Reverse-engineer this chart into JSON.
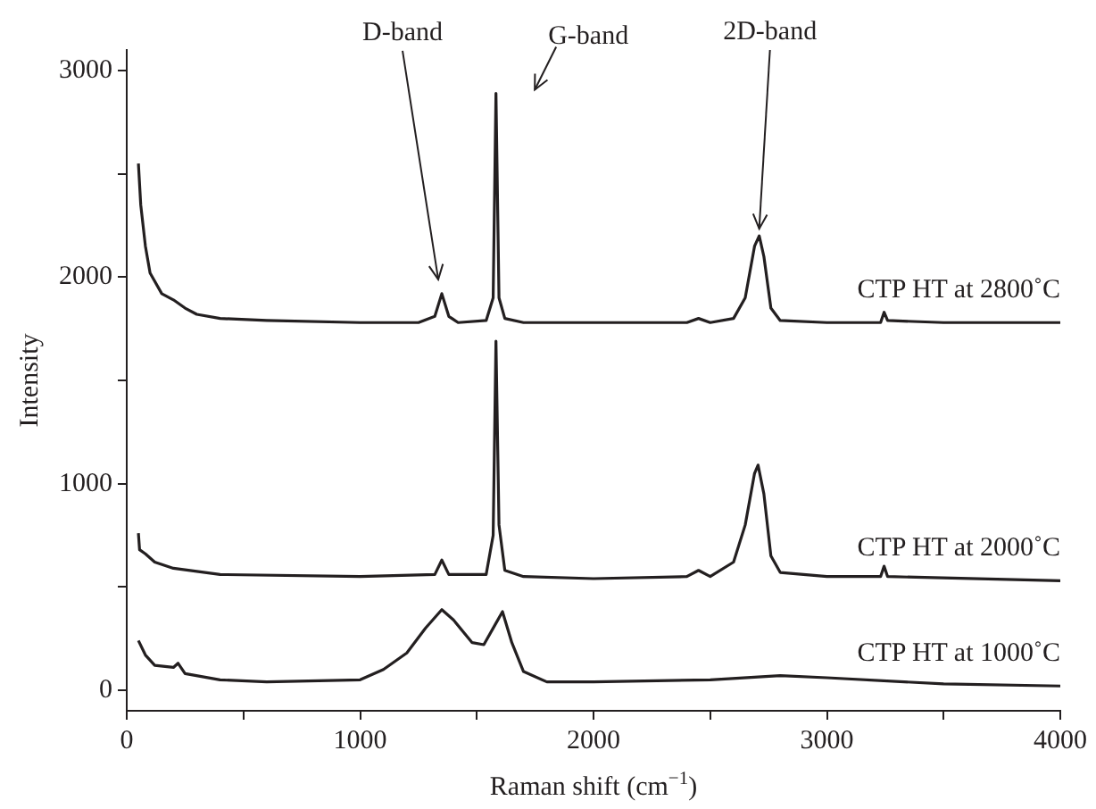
{
  "chart_data": {
    "type": "line",
    "xlabel": "Raman shift (cm$^{−1}$)",
    "ylabel": "Intensity",
    "xlim": [
      0,
      4000
    ],
    "xticks": [
      0,
      {
        "value": 500,
        "label": null
      },
      1000,
      {
        "value": 1500,
        "label": null
      },
      2000,
      {
        "value": 2500,
        "label": null
      },
      3000,
      {
        "value": 3500,
        "label": null
      },
      4000
    ],
    "ylim": [
      -100,
      3100
    ],
    "yticks": [
      0,
      {
        "value": 500,
        "label": null
      },
      1000,
      {
        "value": 1500,
        "label": null
      },
      2000,
      {
        "value": 2500,
        "label": null
      },
      3000
    ],
    "grid": false,
    "legend": false,
    "marker": "none",
    "line_style": "solid",
    "annotations": [
      {
        "text": "D-band",
        "x": 1350,
        "y": 1920
      },
      {
        "text": "G-band",
        "x": 1580,
        "y": 2890
      },
      {
        "text": "2D-band",
        "x": 2710,
        "y": 2200
      }
    ],
    "series": [
      {
        "name": "CTP HT at 2800˚C",
        "color": "#231f20",
        "x": [
          50,
          60,
          80,
          100,
          150,
          200,
          250,
          300,
          400,
          600,
          1000,
          1250,
          1320,
          1350,
          1380,
          1420,
          1540,
          1570,
          1582,
          1595,
          1620,
          1700,
          2000,
          2400,
          2450,
          2500,
          2600,
          2650,
          2690,
          2710,
          2730,
          2760,
          2800,
          3000,
          3230,
          3245,
          3260,
          3500,
          4000
        ],
        "values": [
          2550,
          2350,
          2150,
          2020,
          1920,
          1890,
          1850,
          1820,
          1800,
          1790,
          1780,
          1780,
          1810,
          1920,
          1810,
          1780,
          1790,
          1900,
          2890,
          1900,
          1800,
          1780,
          1780,
          1780,
          1800,
          1780,
          1800,
          1900,
          2150,
          2200,
          2100,
          1850,
          1790,
          1780,
          1780,
          1830,
          1790,
          1780,
          1780
        ]
      },
      {
        "name": "CTP HT at 2000˚C",
        "color": "#231f20",
        "x": [
          50,
          55,
          80,
          120,
          200,
          400,
          1000,
          1320,
          1350,
          1380,
          1540,
          1570,
          1582,
          1595,
          1620,
          1700,
          2000,
          2400,
          2450,
          2500,
          2600,
          2650,
          2690,
          2705,
          2730,
          2760,
          2800,
          3000,
          3230,
          3245,
          3260,
          4000
        ],
        "values": [
          760,
          680,
          660,
          620,
          590,
          560,
          550,
          560,
          630,
          560,
          560,
          750,
          1690,
          800,
          580,
          550,
          540,
          550,
          580,
          550,
          620,
          800,
          1050,
          1090,
          950,
          650,
          570,
          550,
          550,
          600,
          550,
          530
        ]
      },
      {
        "name": "CTP HT at 1000˚C",
        "color": "#231f20",
        "x": [
          50,
          80,
          120,
          200,
          220,
          250,
          400,
          600,
          1000,
          1100,
          1200,
          1280,
          1350,
          1400,
          1480,
          1530,
          1580,
          1610,
          1650,
          1700,
          1800,
          2000,
          2500,
          2800,
          3000,
          3500,
          4000
        ],
        "values": [
          240,
          170,
          120,
          110,
          130,
          80,
          50,
          40,
          50,
          100,
          180,
          300,
          390,
          340,
          230,
          220,
          320,
          380,
          230,
          90,
          40,
          40,
          50,
          70,
          60,
          30,
          20
        ]
      }
    ]
  }
}
